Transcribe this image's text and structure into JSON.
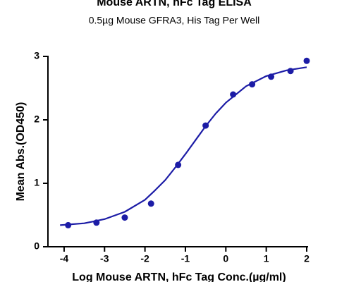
{
  "chart_data": {
    "type": "scatter",
    "title": "Mouse ARTN, hFc Tag ELISA",
    "subtitle": "0.5µg Mouse GFRA3, His Tag Per Well",
    "x_label": "Log Mouse ARTN, hFc Tag Conc.(µg/ml)",
    "y_label": "Mean Abs.(OD450)",
    "x": [
      -3.9,
      -3.2,
      -2.5,
      -1.85,
      -1.18,
      -0.5,
      0.18,
      0.65,
      1.12,
      1.6,
      2.0
    ],
    "values": [
      0.34,
      0.38,
      0.46,
      0.68,
      1.29,
      1.91,
      2.4,
      2.56,
      2.68,
      2.77,
      2.93
    ],
    "color": "#1c1ca6",
    "curve": {
      "x": [
        -4.1,
        -3.5,
        -3.0,
        -2.5,
        -2.0,
        -1.75,
        -1.5,
        -1.25,
        -1.0,
        -0.75,
        -0.5,
        -0.25,
        0,
        0.5,
        1.0,
        1.5,
        2.0
      ],
      "y": [
        0.34,
        0.37,
        0.435,
        0.55,
        0.74,
        0.89,
        1.05,
        1.25,
        1.46,
        1.68,
        1.9,
        2.1,
        2.27,
        2.53,
        2.69,
        2.78,
        2.83
      ]
    },
    "xlim": [
      -4.4,
      2.0
    ],
    "ylim": [
      0,
      3
    ],
    "xticks": [
      -4,
      -3,
      -2,
      -1,
      0,
      1,
      2
    ],
    "yticks": [
      0,
      1,
      2,
      3
    ]
  }
}
